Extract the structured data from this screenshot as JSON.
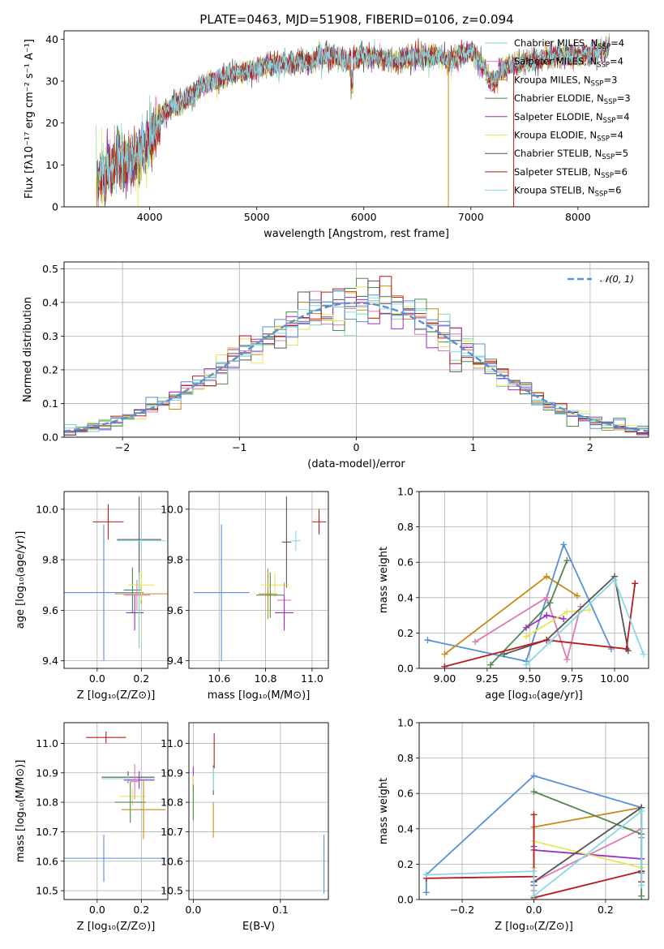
{
  "title": "PLATE=0463, MJD=51908, FIBERID=0106, z=0.094",
  "colors": {
    "chab_miles": "#7fd6a8",
    "salp_miles": "#e07ab4",
    "krou_miles": "#c88a18",
    "chab_elodie": "#4e8a4e",
    "salp_elodie": "#9a2fc4",
    "krou_elodie": "#e6e65a",
    "chab_stelib": "#555555",
    "salp_stelib": "#b81c1c",
    "krou_stelib": "#8ad8e6",
    "normal": "#5b8fd6"
  },
  "chart_data": [
    {
      "id": "spectrum",
      "type": "line",
      "xlabel": "wavelength [Angstrom, rest frame]",
      "ylabel": "Flux [fλ10⁻¹⁷ erg cm⁻² s⁻¹ A⁻¹]",
      "xlim": [
        3200,
        8660
      ],
      "ylim": [
        0,
        42
      ],
      "xticks": [
        4000,
        5000,
        6000,
        7000,
        8000
      ],
      "yticks": [
        0,
        10,
        20,
        30,
        40
      ],
      "grid": false,
      "legend_position": "top-right",
      "legend": [
        {
          "label": "Chabrier MILES, N",
          "sub": "SSP",
          "tail": "=4",
          "color": "#7fd6a8"
        },
        {
          "label": "Salpeter MILES, N",
          "sub": "SSP",
          "tail": "=4",
          "color": "#e07ab4"
        },
        {
          "label": "Kroupa MILES, N",
          "sub": "SSP",
          "tail": "=3",
          "color": "#c88a18"
        },
        {
          "label": "Chabrier ELODIE, N",
          "sub": "SSP",
          "tail": "=3",
          "color": "#4e8a4e"
        },
        {
          "label": "Salpeter ELODIE, N",
          "sub": "SSP",
          "tail": "=4",
          "color": "#9a2fc4"
        },
        {
          "label": "Kroupa ELODIE, N",
          "sub": "SSP",
          "tail": "=4",
          "color": "#e6e65a"
        },
        {
          "label": "Chabrier STELIB, N",
          "sub": "SSP",
          "tail": "=5",
          "color": "#555555"
        },
        {
          "label": "Salpeter STELIB, N",
          "sub": "SSP",
          "tail": "=6",
          "color": "#b81c1c"
        },
        {
          "label": "Kroupa STELIB, N",
          "sub": "SSP",
          "tail": "=6",
          "color": "#8ad8e6"
        }
      ],
      "envelope": {
        "x": [
          3500,
          3600,
          3700,
          3800,
          3900,
          4000,
          4100,
          4200,
          4300,
          4400,
          4500,
          4600,
          4700,
          4800,
          4900,
          5000,
          5100,
          5200,
          5300,
          5400,
          5500,
          5600,
          5700,
          5800,
          5900,
          6000,
          6100,
          6200,
          6300,
          6400,
          6500,
          6600,
          6700,
          6800,
          6900,
          7000,
          7100,
          7200,
          7300,
          7400,
          7600,
          7800,
          8000,
          8200,
          8300
        ],
        "y": [
          7,
          9,
          11,
          10,
          12,
          16,
          21,
          24,
          25,
          27,
          29,
          30,
          31,
          32,
          32,
          33,
          34,
          34,
          34,
          35,
          34,
          36,
          36,
          35,
          35,
          36,
          36,
          35,
          35,
          35,
          36,
          36,
          36,
          35,
          36,
          37,
          34,
          32,
          33,
          34,
          35,
          36,
          36,
          37,
          38
        ]
      },
      "spikes": [
        {
          "x": 3505,
          "y": 0
        },
        {
          "x": 3890,
          "y": 0
        },
        {
          "x": 6790,
          "y": 0
        },
        {
          "x": 7400,
          "y": 0
        }
      ]
    },
    {
      "id": "residuals",
      "type": "line",
      "xlabel": "(data-model)/error",
      "ylabel": "Normed distribution",
      "xlim": [
        -2.5,
        2.5
      ],
      "ylim": [
        0,
        0.52
      ],
      "xticks": [
        -2,
        -1,
        0,
        1,
        2
      ],
      "yticks": [
        0.0,
        0.1,
        0.2,
        0.3,
        0.4,
        0.5
      ],
      "grid": true,
      "legend_position": "top-right",
      "legend": [
        {
          "label": "𝒩(0, 1)",
          "color": "#5b8fd6"
        }
      ],
      "bin_width": 0.1
    },
    {
      "id": "age_Z",
      "type": "scatter",
      "xlabel": "Z [log₁₀(Z/Z⊙)]",
      "ylabel": "age  [log₁₀(age/yr)]",
      "xlim": [
        -0.15,
        0.32
      ],
      "ylim": [
        9.37,
        10.07
      ],
      "xticks": [
        0.0,
        0.2
      ],
      "yticks": [
        9.4,
        9.6,
        9.8,
        10.0
      ],
      "grid": true,
      "points": [
        {
          "x": 0.05,
          "y": 9.95,
          "xerr": 0.07,
          "yerr": 0.07,
          "color": "#b81c1c"
        },
        {
          "x": 0.19,
          "y": 9.88,
          "xerr": 0.1,
          "yerr": 0.17,
          "color": "#555555"
        },
        {
          "x": 0.2,
          "y": 9.875,
          "xerr": 0.11,
          "yerr": 0.04,
          "color": "#8ad8e6"
        },
        {
          "x": 0.03,
          "y": 9.67,
          "xerr": 0.18,
          "yerr": 0.27,
          "color": "#5b8fd6"
        },
        {
          "x": 0.16,
          "y": 9.68,
          "xerr": 0.04,
          "yerr": 0.09,
          "color": "#4e8a4e"
        },
        {
          "x": 0.2,
          "y": 9.665,
          "xerr": 0.12,
          "yerr": 0.04,
          "color": "#c88a18"
        },
        {
          "x": 0.2,
          "y": 9.7,
          "xerr": 0.06,
          "yerr": 0.06,
          "color": "#e6e65a"
        },
        {
          "x": 0.18,
          "y": 9.66,
          "xerr": 0.06,
          "yerr": 0.06,
          "color": "#e07ab4"
        },
        {
          "x": 0.17,
          "y": 9.59,
          "xerr": 0.04,
          "yerr": 0.07,
          "color": "#9a2fc4"
        },
        {
          "x": 0.19,
          "y": 9.6,
          "xerr": 0.02,
          "yerr": 0.15,
          "color": "#7fd6a8"
        }
      ]
    },
    {
      "id": "age_mass",
      "type": "scatter",
      "xlabel": "mass [log₁₀(M/M⊙)]",
      "ylabel": "",
      "xlim": [
        10.47,
        11.07
      ],
      "ylim": [
        9.37,
        10.07
      ],
      "xticks": [
        10.6,
        10.8,
        11.0
      ],
      "yticks": [
        9.4,
        9.6,
        9.8,
        10.0
      ],
      "grid": true,
      "points": [
        {
          "x": 11.03,
          "y": 9.95,
          "xerr": 0.03,
          "yerr": 0.05,
          "color": "#b81c1c"
        },
        {
          "x": 10.89,
          "y": 9.87,
          "xerr": 0.02,
          "yerr": 0.18,
          "color": "#555555"
        },
        {
          "x": 10.93,
          "y": 9.875,
          "xerr": 0.02,
          "yerr": 0.04,
          "color": "#8ad8e6"
        },
        {
          "x": 10.61,
          "y": 9.67,
          "xerr": 0.12,
          "yerr": 0.27,
          "color": "#5b8fd6"
        },
        {
          "x": 10.81,
          "y": 9.665,
          "xerr": 0.04,
          "yerr": 0.1,
          "color": "#c88a18"
        },
        {
          "x": 10.84,
          "y": 9.7,
          "xerr": 0.06,
          "yerr": 0.05,
          "color": "#e6e65a"
        },
        {
          "x": 10.82,
          "y": 9.66,
          "xerr": 0.06,
          "yerr": 0.09,
          "color": "#4e8a4e"
        },
        {
          "x": 10.88,
          "y": 9.64,
          "xerr": 0.03,
          "yerr": 0.07,
          "color": "#e07ab4"
        },
        {
          "x": 10.88,
          "y": 9.59,
          "xerr": 0.04,
          "yerr": 0.07,
          "color": "#9a2fc4"
        }
      ]
    },
    {
      "id": "mw_age",
      "type": "line",
      "xlabel": "age  [log₁₀(age/yr)]",
      "ylabel": "mass weight",
      "xlim": [
        8.85,
        10.2
      ],
      "ylim": [
        0,
        1
      ],
      "xticks": [
        9.0,
        9.25,
        9.5,
        9.75,
        10.0
      ],
      "yticks": [
        0.0,
        0.2,
        0.4,
        0.6,
        0.8,
        1.0
      ],
      "grid": true,
      "series": [
        {
          "color": "#5b8fd6",
          "x": [
            8.9,
            9.48,
            9.7,
            9.98
          ],
          "y": [
            0.16,
            0.04,
            0.7,
            0.11
          ]
        },
        {
          "color": "#c88a18",
          "x": [
            9.0,
            9.6,
            9.78
          ],
          "y": [
            0.08,
            0.52,
            0.41
          ]
        },
        {
          "color": "#e07ab4",
          "x": [
            9.18,
            9.6,
            9.72,
            9.8
          ],
          "y": [
            0.15,
            0.4,
            0.05,
            0.35
          ]
        },
        {
          "color": "#4e8a4e",
          "x": [
            9.27,
            9.62,
            9.72
          ],
          "y": [
            0.02,
            0.37,
            0.61
          ]
        },
        {
          "color": "#9a2fc4",
          "x": [
            9.48,
            9.6,
            9.7
          ],
          "y": [
            0.23,
            0.3,
            0.28
          ]
        },
        {
          "color": "#e6e65a",
          "x": [
            9.48,
            9.72,
            9.85
          ],
          "y": [
            0.18,
            0.32,
            0.33
          ]
        },
        {
          "color": "#555555",
          "x": [
            9.35,
            9.6,
            10.0,
            10.08
          ],
          "y": [
            0.08,
            0.16,
            0.52,
            0.1
          ]
        },
        {
          "color": "#b81c1c",
          "x": [
            9.0,
            9.6,
            10.07,
            10.12
          ],
          "y": [
            0.01,
            0.16,
            0.11,
            0.48
          ]
        },
        {
          "color": "#8ad8e6",
          "x": [
            9.48,
            9.62,
            10.0,
            10.17
          ],
          "y": [
            0.02,
            0.15,
            0.5,
            0.08
          ]
        }
      ]
    },
    {
      "id": "mass_Z",
      "type": "scatter",
      "xlabel": "Z [log₁₀(Z/Z⊙)]",
      "ylabel": "mass [log₁₀(M/M⊙)]",
      "xlim": [
        -0.15,
        0.32
      ],
      "ylim": [
        10.47,
        11.07
      ],
      "xticks": [
        0.0,
        0.2
      ],
      "yticks": [
        10.5,
        10.6,
        10.7,
        10.8,
        10.9,
        11.0
      ],
      "grid": true,
      "points": [
        {
          "x": 0.04,
          "y": 11.02,
          "xerr": 0.09,
          "yerr": 0.02,
          "color": "#b81c1c"
        },
        {
          "x": 0.14,
          "y": 10.885,
          "xerr": 0.12,
          "yerr": 0.02,
          "color": "#555555"
        },
        {
          "x": 0.14,
          "y": 10.88,
          "xerr": 0.12,
          "yerr": 0.01,
          "color": "#8ad8e6"
        },
        {
          "x": 0.19,
          "y": 10.875,
          "xerr": 0.07,
          "yerr": 0.03,
          "color": "#9a2fc4"
        },
        {
          "x": 0.17,
          "y": 10.87,
          "xerr": 0.02,
          "yerr": 0.06,
          "color": "#e07ab4"
        },
        {
          "x": 0.16,
          "y": 10.82,
          "xerr": 0.06,
          "yerr": 0.03,
          "color": "#e6e65a"
        },
        {
          "x": 0.15,
          "y": 10.8,
          "xerr": 0.07,
          "yerr": 0.07,
          "color": "#4e8a4e"
        },
        {
          "x": 0.21,
          "y": 10.775,
          "xerr": 0.1,
          "yerr": 0.1,
          "color": "#c88a18"
        },
        {
          "x": 0.03,
          "y": 10.61,
          "xerr": 0.28,
          "yerr": 0.08,
          "color": "#5b8fd6"
        }
      ]
    },
    {
      "id": "mass_EBV",
      "type": "scatter",
      "xlabel": "E(B-V)",
      "ylabel": "",
      "xlim": [
        -0.005,
        0.155
      ],
      "ylim": [
        10.47,
        11.07
      ],
      "xticks": [
        0.0,
        0.1
      ],
      "yticks": [
        10.5,
        10.6,
        10.7,
        10.8,
        10.9,
        11.0
      ],
      "grid": true,
      "points": [
        {
          "x": 0.024,
          "y": 10.975,
          "xerr": 0,
          "yerr": 0.06,
          "color": "#b81c1c"
        },
        {
          "x": 0.023,
          "y": 10.875,
          "xerr": 0,
          "yerr": 0.05,
          "color": "#555555"
        },
        {
          "x": 0.023,
          "y": 10.88,
          "xerr": 0,
          "yerr": 0.04,
          "color": "#8ad8e6"
        },
        {
          "x": 0.0,
          "y": 10.88,
          "xerr": 0,
          "yerr": 0.04,
          "color": "#9a2fc4"
        },
        {
          "x": 0.0,
          "y": 10.82,
          "xerr": 0,
          "yerr": 0.07,
          "color": "#e6e65a"
        },
        {
          "x": 0.023,
          "y": 10.74,
          "xerr": 0,
          "yerr": 0.06,
          "color": "#c88a18"
        },
        {
          "x": 0.0,
          "y": 10.8,
          "xerr": 0,
          "yerr": 0.06,
          "color": "#4e8a4e"
        },
        {
          "x": 0.15,
          "y": 10.59,
          "xerr": 0,
          "yerr": 0.1,
          "color": "#5b8fd6"
        }
      ]
    },
    {
      "id": "mw_Z",
      "type": "line",
      "xlabel": "Z [log₁₀(Z/Z⊙)]",
      "ylabel": "mass weight",
      "xlim": [
        -0.32,
        0.32
      ],
      "ylim": [
        0,
        1
      ],
      "xticks": [
        -0.2,
        0.0,
        0.2
      ],
      "yticks": [
        0.0,
        0.2,
        0.4,
        0.6,
        0.8,
        1.0
      ],
      "grid": true,
      "series": [
        {
          "color": "#5b8fd6",
          "x": [
            -0.3,
            -0.3,
            0.0,
            0.3,
            0.3
          ],
          "y": [
            0.04,
            0.14,
            0.7,
            0.52,
            0.15
          ]
        },
        {
          "color": "#c88a18",
          "x": [
            0.0,
            0.0,
            0.3
          ],
          "y": [
            0.0,
            0.41,
            0.52
          ]
        },
        {
          "color": "#e07ab4",
          "x": [
            0.0,
            0.0,
            0.3,
            0.3
          ],
          "y": [
            0.05,
            0.1,
            0.4,
            0.35
          ]
        },
        {
          "color": "#4e8a4e",
          "x": [
            0.0,
            0.3,
            0.3,
            0.3
          ],
          "y": [
            0.61,
            0.37,
            0.52,
            0.02
          ]
        },
        {
          "color": "#9a2fc4",
          "x": [
            0.0,
            0.0,
            0.3
          ],
          "y": [
            0.3,
            0.28,
            0.23
          ]
        },
        {
          "color": "#e6e65a",
          "x": [
            0.0,
            0.0,
            0.3
          ],
          "y": [
            0.18,
            0.33,
            0.18
          ]
        },
        {
          "color": "#555555",
          "x": [
            0.0,
            0.0,
            0.3,
            0.3
          ],
          "y": [
            0.08,
            0.1,
            0.52,
            0.16
          ]
        },
        {
          "color": "#b81c1c",
          "x": [
            -0.3,
            0.0,
            0.0,
            0.0,
            0.3,
            0.3
          ],
          "y": [
            0.12,
            0.13,
            0.48,
            0.01,
            0.16,
            0.1
          ]
        },
        {
          "color": "#8ad8e6",
          "x": [
            -0.3,
            0.0,
            0.0,
            0.3,
            0.3
          ],
          "y": [
            0.14,
            0.16,
            0.02,
            0.5,
            0.08
          ]
        }
      ]
    }
  ]
}
